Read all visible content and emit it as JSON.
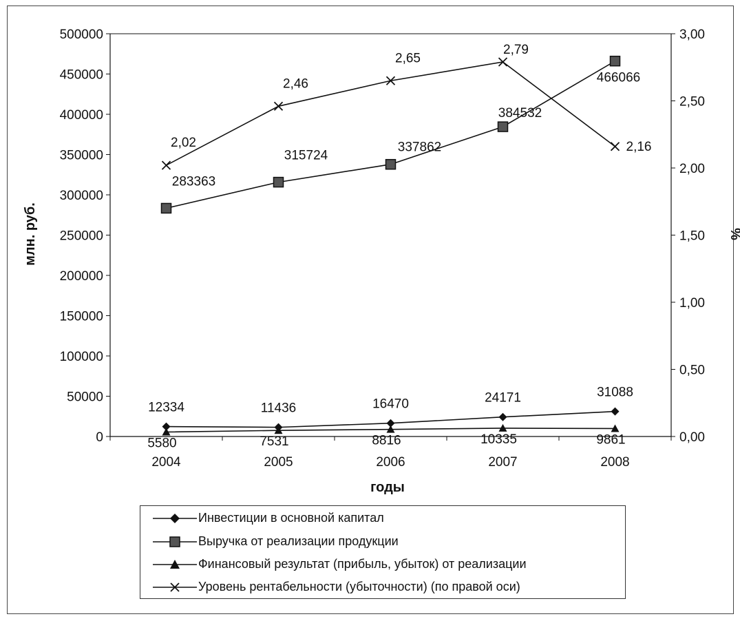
{
  "chart_data": {
    "type": "line",
    "title": "",
    "xlabel": "годы",
    "ylabel": "млн. руб.",
    "y2label": "%",
    "categories": [
      "2004",
      "2005",
      "2006",
      "2007",
      "2008"
    ],
    "ylim": [
      0,
      500000
    ],
    "y2lim": [
      0,
      3.0
    ],
    "y_ticks": [
      "0",
      "50000",
      "100000",
      "150000",
      "200000",
      "250000",
      "300000",
      "350000",
      "400000",
      "450000",
      "500000"
    ],
    "y2_ticks": [
      "0,00",
      "0,50",
      "1,00",
      "1,50",
      "2,00",
      "2,50",
      "3,00"
    ],
    "grid": false,
    "legend_position": "bottom",
    "series": [
      {
        "name": "Инвестиции в основной капитал",
        "axis": "left",
        "marker": "diamond",
        "values": [
          12334,
          11436,
          16470,
          24171,
          31088
        ],
        "labels": [
          "12334",
          "11436",
          "16470",
          "24171",
          "31088"
        ]
      },
      {
        "name": "Выручка от реализации продукции",
        "axis": "left",
        "marker": "square",
        "values": [
          283363,
          315724,
          337862,
          384532,
          466066
        ],
        "labels": [
          "283363",
          "315724",
          "337862",
          "384532",
          "466066"
        ]
      },
      {
        "name": "Финансовый результат (прибыль, убыток) от реализации",
        "axis": "left",
        "marker": "triangle",
        "values": [
          5580,
          7531,
          8816,
          10335,
          9861
        ],
        "labels": [
          "5580",
          "7531",
          "8816",
          "10335",
          "9861"
        ]
      },
      {
        "name": "Уровень рентабельности (убыточности) (по правой оси)",
        "axis": "right",
        "marker": "x",
        "values": [
          2.02,
          2.46,
          2.65,
          2.79,
          2.16
        ],
        "labels": [
          "2,02",
          "2,46",
          "2,65",
          "2,79",
          "2,16"
        ]
      }
    ]
  }
}
